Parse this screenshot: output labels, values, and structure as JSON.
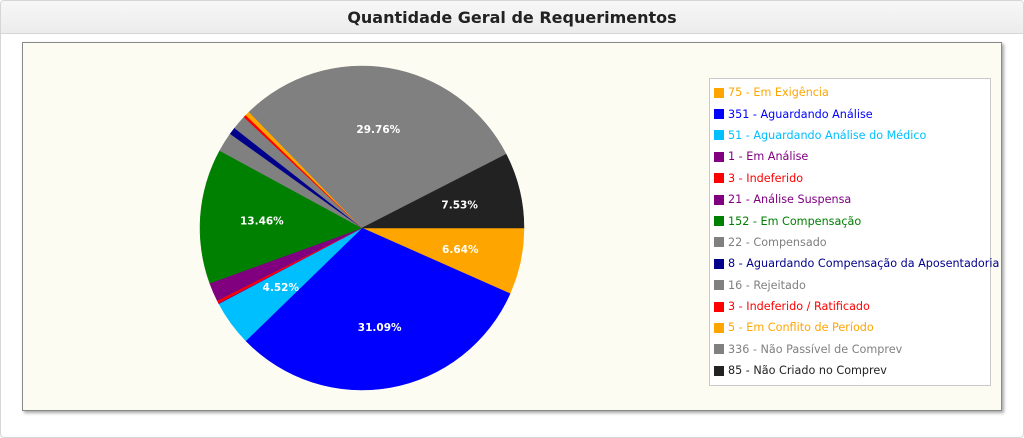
{
  "header": {
    "title": "Quantidade Geral de Requerimentos"
  },
  "chart_data": {
    "type": "pie",
    "start_angle_deg": 0,
    "slices": [
      {
        "label": "75 - Em Exigência",
        "value": 75,
        "percent_label": "6.64%",
        "color": "#ffa500",
        "text_color": "#ffa500"
      },
      {
        "label": "351 - Aguardando Análise",
        "value": 351,
        "percent_label": "31.09%",
        "color": "#0000ff",
        "text_color": "#0000ff"
      },
      {
        "label": "51 - Aguardando Análise do Médico",
        "value": 51,
        "percent_label": "4.52%",
        "color": "#00bfff",
        "text_color": "#00bfff"
      },
      {
        "label": "1 - Em Análise",
        "value": 1,
        "percent_label": "",
        "color": "#800080",
        "text_color": "#800080"
      },
      {
        "label": "3 - Indeferido",
        "value": 3,
        "percent_label": "",
        "color": "#ff0000",
        "text_color": "#ff0000"
      },
      {
        "label": "21 - Análise Suspensa",
        "value": 21,
        "percent_label": "",
        "color": "#800080",
        "text_color": "#800080"
      },
      {
        "label": "152 - Em Compensação",
        "value": 152,
        "percent_label": "13.46%",
        "color": "#008000",
        "text_color": "#008000"
      },
      {
        "label": "22 - Compensado",
        "value": 22,
        "percent_label": "",
        "color": "#808080",
        "text_color": "#808080"
      },
      {
        "label": "8 - Aguardando Compensação da Aposentadoria",
        "value": 8,
        "percent_label": "",
        "color": "#00008b",
        "text_color": "#00008b"
      },
      {
        "label": "16 - Rejeitado",
        "value": 16,
        "percent_label": "",
        "color": "#808080",
        "text_color": "#808080"
      },
      {
        "label": "3 - Indeferido / Ratificado",
        "value": 3,
        "percent_label": "",
        "color": "#ff0000",
        "text_color": "#ff0000"
      },
      {
        "label": "5 - Em Conflito de Período",
        "value": 5,
        "percent_label": "",
        "color": "#ffa500",
        "text_color": "#ffa500"
      },
      {
        "label": "336 - Não Passível de Comprev",
        "value": 336,
        "percent_label": "29.76%",
        "color": "#808080",
        "text_color": "#808080"
      },
      {
        "label": "85 - Não Criado no Comprev",
        "value": 85,
        "percent_label": "7.53%",
        "color": "#222222",
        "text_color": "#222222"
      }
    ],
    "legend_placement": "right"
  }
}
